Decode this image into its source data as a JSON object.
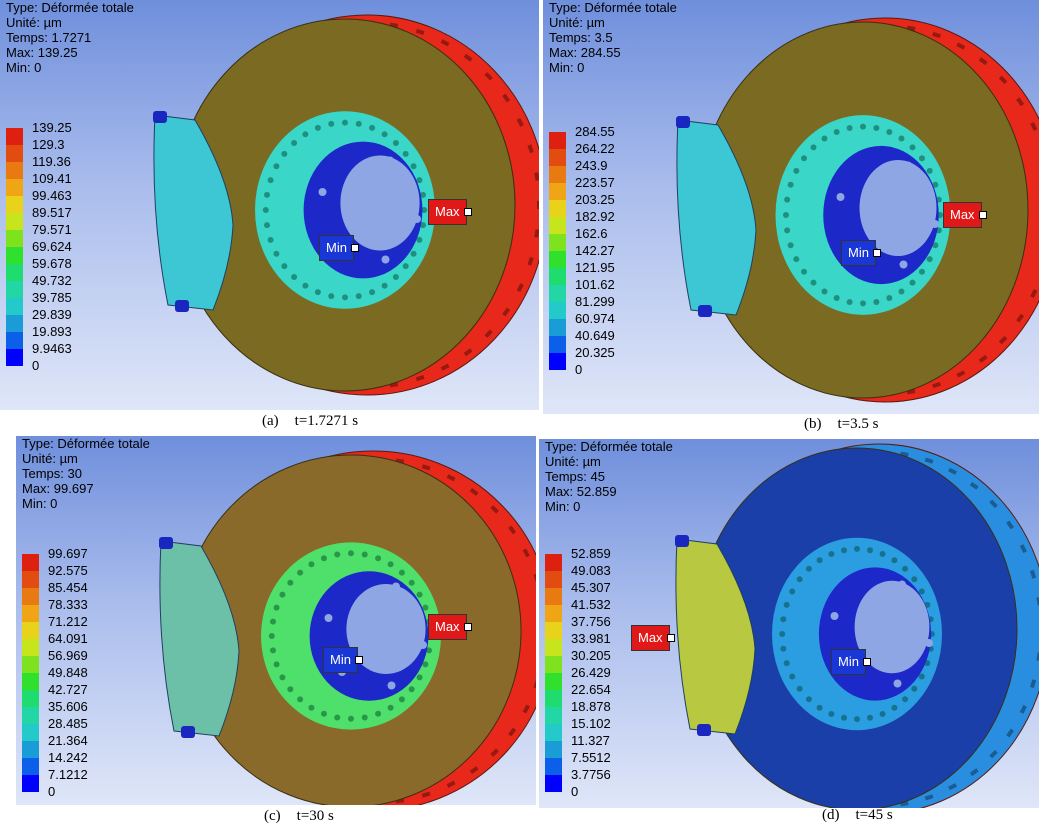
{
  "palette": [
    "#0000ff",
    "#0b5fe8",
    "#1a9cd6",
    "#24c9c9",
    "#22d6a6",
    "#1fdc6e",
    "#2fe02c",
    "#7ee21e",
    "#c6e51c",
    "#e8d21a",
    "#f0a516",
    "#e97a12",
    "#e34c10",
    "#dd2010"
  ],
  "panels": [
    {
      "id": "a",
      "type_line": "Type: Déformée totale",
      "unit_line": "Unité: µm",
      "time_line": "Temps: 1.7271",
      "max_line": "Max: 139.25",
      "min_line": "Min: 0",
      "legend_values": [
        "139.25",
        "129.3",
        "119.36",
        "109.41",
        "99.463",
        "89.517",
        "79.571",
        "69.624",
        "59.678",
        "49.732",
        "39.785",
        "29.839",
        "19.893",
        "9.9463",
        "0"
      ],
      "max_tag": "Max",
      "min_tag": "Min",
      "caption_label": "(a)",
      "caption_time": "t=1.7271 s",
      "disc_color": "#7a6a22",
      "rim_color": "#e8281a",
      "hub_color": "#3ad6c8",
      "pad_color": "#3dc6d4"
    },
    {
      "id": "b",
      "type_line": "Type: Déformée totale",
      "unit_line": "Unité: µm",
      "time_line": "Temps: 3.5",
      "max_line": "Max: 284.55",
      "min_line": "Min: 0",
      "legend_values": [
        "284.55",
        "264.22",
        "243.9",
        "223.57",
        "203.25",
        "182.92",
        "162.6",
        "142.27",
        "121.95",
        "101.62",
        "81.299",
        "60.974",
        "40.649",
        "20.325",
        "0"
      ],
      "max_tag": "Max",
      "min_tag": "Min",
      "caption_label": "(b)",
      "caption_time": "t=3.5 s",
      "disc_color": "#7a6a22",
      "rim_color": "#e8281a",
      "hub_color": "#3ad6c8",
      "pad_color": "#3dc6d4"
    },
    {
      "id": "c",
      "type_line": "Type: Déformée totale",
      "unit_line": "Unité: µm",
      "time_line": "Temps: 30",
      "max_line": "Max: 99.697",
      "min_line": "Min: 0",
      "legend_values": [
        "99.697",
        "92.575",
        "85.454",
        "78.333",
        "71.212",
        "64.091",
        "56.969",
        "49.848",
        "42.727",
        "35.606",
        "28.485",
        "21.364",
        "14.242",
        "7.1212",
        "0"
      ],
      "max_tag": "Max",
      "min_tag": "Min",
      "caption_label": "(c)",
      "caption_time": "t=30 s",
      "disc_color": "#8a6a2a",
      "rim_color": "#e8281a",
      "hub_color": "#4ee06a",
      "pad_color": "#6dc0a8"
    },
    {
      "id": "d",
      "type_line": "Type: Déformée totale",
      "unit_line": "Unité: µm",
      "time_line": "Temps: 45",
      "max_line": "Max: 52.859",
      "min_line": "Min: 0",
      "legend_values": [
        "52.859",
        "49.083",
        "45.307",
        "41.532",
        "37.756",
        "33.981",
        "30.205",
        "26.429",
        "22.654",
        "18.878",
        "15.102",
        "11.327",
        "7.5512",
        "3.7756",
        "0"
      ],
      "max_tag": "Max",
      "min_tag": "Min",
      "caption_label": "(d)",
      "caption_time": "t=45 s",
      "disc_color": "#1a3fa8",
      "rim_color": "#2a8ee0",
      "hub_color": "#2a9ee0",
      "pad_color": "#b8c840"
    }
  ]
}
